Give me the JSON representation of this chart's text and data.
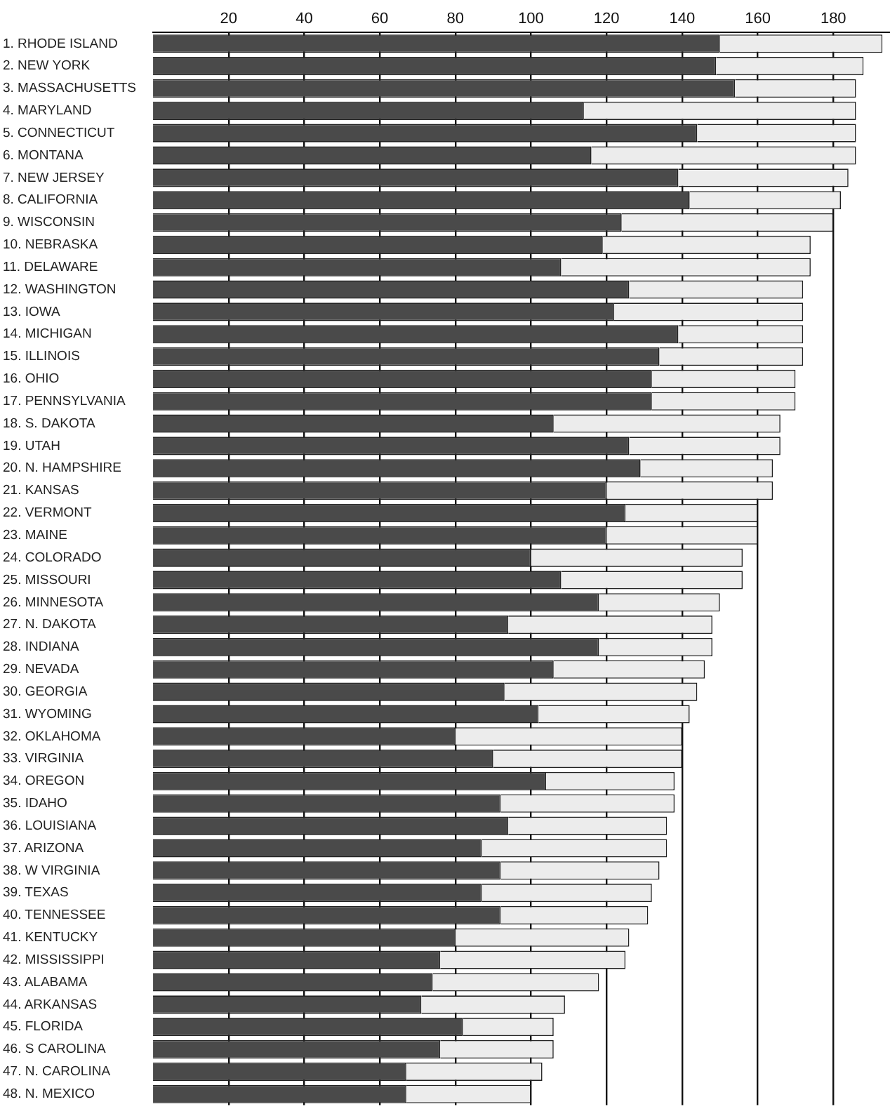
{
  "chart_data": {
    "type": "bar",
    "orientation": "horizontal",
    "stacked": true,
    "categories": [
      "1. RHODE ISLAND",
      "2. NEW YORK",
      "3. MASSACHUSETTS",
      "4. MARYLAND",
      "5. CONNECTICUT",
      "6. MONTANA",
      "7. NEW JERSEY",
      "8. CALIFORNIA",
      "9. WISCONSIN",
      "10. NEBRASKA",
      "11. DELAWARE",
      "12. WASHINGTON",
      "13. IOWA",
      "14. MICHIGAN",
      "15. ILLINOIS",
      "16. OHIO",
      "17. PENNSYLVANIA",
      "18. S. DAKOTA",
      "19. UTAH",
      "20. N. HAMPSHIRE",
      "21. KANSAS",
      "22. VERMONT",
      "23. MAINE",
      "24. COLORADO",
      "25. MISSOURI",
      "26. MINNESOTA",
      "27. N. DAKOTA",
      "28. INDIANA",
      "29. NEVADA",
      "30. GEORGIA",
      "31. WYOMING",
      "32. OKLAHOMA",
      "33. VIRGINIA",
      "34. OREGON",
      "35. IDAHO",
      "36. LOUISIANA",
      "37. ARIZONA",
      "38. W VIRGINIA",
      "39. TEXAS",
      "40. TENNESSEE",
      "41. KENTUCKY",
      "42. MISSISSIPPI",
      "43. ALABAMA",
      "44. ARKANSAS",
      "45. FLORIDA",
      "46. S CAROLINA",
      "47. N. CAROLINA",
      "48. N. MEXICO"
    ],
    "series": [
      {
        "color": "#4a4a4a",
        "values": [
          150,
          149,
          154,
          114,
          144,
          116,
          139,
          142,
          124,
          119,
          108,
          126,
          122,
          139,
          134,
          132,
          132,
          106,
          126,
          129,
          120,
          125,
          120,
          100,
          108,
          118,
          94,
          118,
          106,
          93,
          102,
          80,
          90,
          104,
          92,
          94,
          87,
          92,
          87,
          92,
          80,
          76,
          74,
          71,
          82,
          76,
          67,
          67
        ]
      },
      {
        "color": "#ececec",
        "values": [
          43,
          39,
          32,
          72,
          42,
          70,
          45,
          40,
          56,
          55,
          66,
          46,
          50,
          33,
          38,
          38,
          38,
          60,
          40,
          35,
          44,
          35,
          40,
          56,
          48,
          32,
          54,
          30,
          40,
          51,
          40,
          60,
          50,
          34,
          46,
          42,
          49,
          42,
          45,
          39,
          46,
          49,
          44,
          38,
          24,
          30,
          36,
          33
        ]
      }
    ],
    "xlim": [
      0,
      195
    ],
    "xticks": [
      20,
      40,
      60,
      80,
      100,
      120,
      140,
      160,
      180
    ],
    "grid": "x",
    "legend": false
  }
}
